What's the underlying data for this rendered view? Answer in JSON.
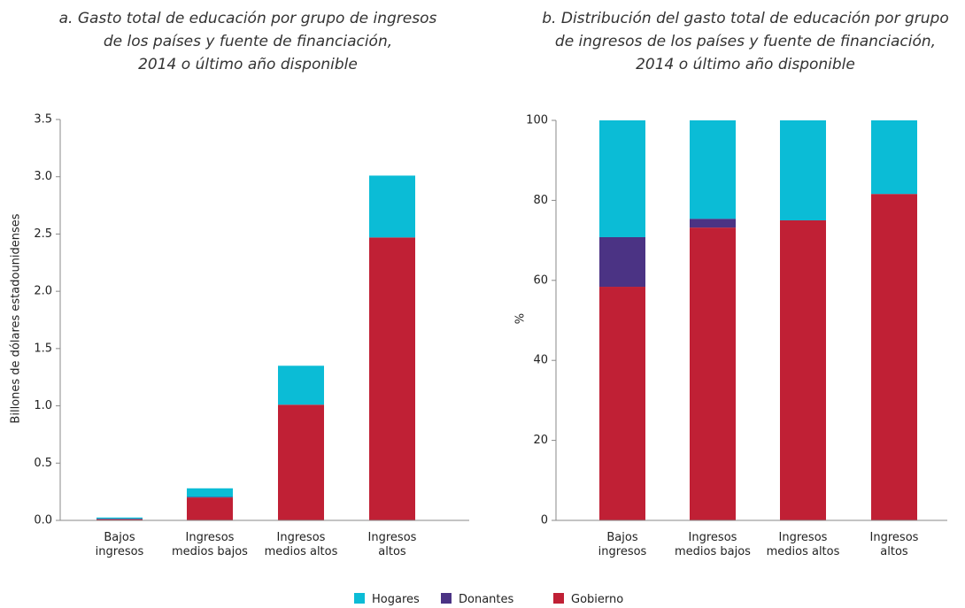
{
  "chart_data": [
    {
      "type": "bar",
      "stacked": true,
      "title": "a. Gasto total de educación por grupo de ingresos\nde los países y fuente de financiación,\n2014 o último año disponible",
      "y_label": "Billones de dólares estadounidenses",
      "categories": [
        "Bajos\ningresos",
        "Ingresos\nmedios bajos",
        "Ingresos\nmedios altos",
        "Ingresos\naltos"
      ],
      "series": [
        {
          "name": "Gobierno",
          "color": "#c02035",
          "values": [
            0.01,
            0.2,
            1.01,
            2.47
          ]
        },
        {
          "name": "Donantes",
          "color": "#4b3384",
          "values": [
            0.005,
            0.005,
            0,
            0
          ]
        },
        {
          "name": "Hogares",
          "color": "#0bbcd6",
          "values": [
            0.01,
            0.075,
            0.34,
            0.54
          ]
        }
      ],
      "ylim": [
        0,
        3.5
      ],
      "yticks": [
        {
          "value": 0,
          "label": "0.0"
        },
        0.5,
        {
          "value": 1,
          "label": "1.0"
        },
        1.5,
        {
          "value": 2,
          "label": "2.0"
        },
        2.5,
        {
          "value": 3,
          "label": "3.0"
        },
        3.5
      ]
    },
    {
      "type": "bar",
      "stacked": true,
      "title": "b. Distribución del gasto total de educación por grupo\nde ingresos de los países y fuente de financiación,\n2014 o último año disponible",
      "y_label": "%",
      "categories": [
        "Bajos\ningresos",
        "Ingresos\nmedios bajos",
        "Ingresos\nmedios altos",
        "Ingresos\naltos"
      ],
      "series": [
        {
          "name": "Gobierno",
          "color": "#c02035",
          "values": [
            58.4,
            73.2,
            75,
            81.6
          ]
        },
        {
          "name": "Donantes",
          "color": "#4b3384",
          "values": [
            12.4,
            2.2,
            0,
            0
          ]
        },
        {
          "name": "Hogares",
          "color": "#0bbcd6",
          "values": [
            29.2,
            24.6,
            25,
            18.4
          ]
        }
      ],
      "ylim": [
        0,
        100
      ],
      "yticks": [
        0,
        20,
        40,
        60,
        80,
        100
      ]
    }
  ]
}
